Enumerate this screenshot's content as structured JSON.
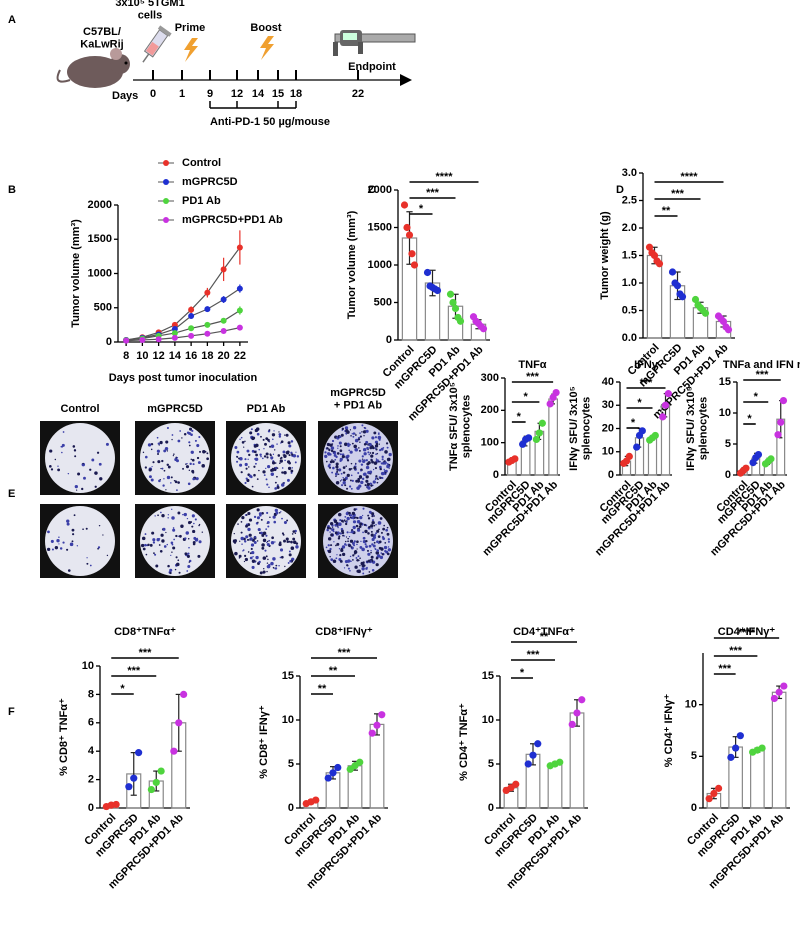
{
  "panel_labels": [
    "A",
    "B",
    "C",
    "D",
    "E",
    "F"
  ],
  "timeline": {
    "mouse_label": "C57BL/ KaLwRij",
    "cells_label": "3x10⁵ 5TGM1 cells",
    "axis_label": "Days",
    "days": [
      0,
      1,
      9,
      12,
      14,
      15,
      18,
      22
    ],
    "events": [
      {
        "label": "Prime",
        "day": 1
      },
      {
        "label": "Boost",
        "day": 14
      },
      {
        "label": "Endpoint",
        "day": 22
      }
    ],
    "treatment": {
      "label": "Anti-PD-1 50 µg/mouse",
      "days": [
        9,
        12,
        15,
        18
      ]
    }
  },
  "elispot": {
    "labels": [
      "Control",
      "mGPRC5D",
      "PD1 Ab",
      "mGPRC5D + PD1 Ab"
    ]
  },
  "chart_data": [
    {
      "type": "line",
      "xlabel": "Days post tumor inoculation",
      "ylabel": "Tumor volume (mm³)",
      "x": [
        8,
        10,
        12,
        14,
        16,
        18,
        20,
        22
      ],
      "xlim": [
        7,
        23
      ],
      "xticks": [
        8,
        10,
        12,
        14,
        16,
        18,
        20,
        22
      ],
      "ylim": [
        0,
        2000
      ],
      "yticks": [
        0,
        500,
        1000,
        1500,
        2000
      ],
      "legend": "top-left",
      "series": [
        {
          "name": "Control",
          "color": "#e8312a",
          "values": [
            30,
            70,
            140,
            250,
            470,
            720,
            1060,
            1380
          ],
          "errors": [
            10,
            15,
            20,
            30,
            50,
            70,
            170,
            250
          ]
        },
        {
          "name": "mGPRC5D",
          "color": "#1f2fd1",
          "values": [
            30,
            60,
            110,
            190,
            380,
            480,
            620,
            780
          ],
          "errors": [
            5,
            10,
            15,
            20,
            40,
            40,
            50,
            60
          ]
        },
        {
          "name": "PD1 Ab",
          "color": "#4fd43e",
          "values": [
            25,
            50,
            90,
            130,
            200,
            250,
            310,
            460
          ],
          "errors": [
            5,
            8,
            10,
            15,
            20,
            30,
            40,
            60
          ]
        },
        {
          "name": "mGPRC5D+PD1 Ab",
          "color": "#c832e0",
          "values": [
            20,
            30,
            40,
            60,
            90,
            120,
            160,
            210
          ],
          "errors": [
            5,
            5,
            8,
            10,
            10,
            15,
            20,
            25
          ]
        }
      ]
    },
    {
      "type": "bar",
      "ylabel": "Tumor volume (mm³)",
      "categories": [
        "Control",
        "mGPRC5D",
        "PD1 Ab",
        "mGPRC5D+PD1 Ab"
      ],
      "colors": [
        "#e8312a",
        "#1f2fd1",
        "#4fd43e",
        "#c832e0"
      ],
      "values": [
        1360,
        760,
        450,
        210
      ],
      "errors": [
        350,
        170,
        160,
        60
      ],
      "points": [
        [
          1800,
          1500,
          1400,
          1150,
          1000
        ],
        [
          900,
          720,
          700,
          680,
          660
        ],
        [
          610,
          500,
          420,
          300,
          250
        ],
        [
          310,
          250,
          220,
          180,
          150
        ]
      ],
      "ylim": [
        0,
        2000
      ],
      "yticks": [
        0,
        500,
        1000,
        1500,
        2000
      ],
      "significance": [
        {
          "label": "*",
          "groups": [
            0,
            1
          ]
        },
        {
          "label": "***",
          "groups": [
            0,
            2
          ]
        },
        {
          "label": "****",
          "groups": [
            0,
            3
          ]
        }
      ]
    },
    {
      "type": "bar",
      "ylabel": "Tumor weight (g)",
      "categories": [
        "Control",
        "mGPRC5D",
        "PD1 Ab",
        "mGPRC5D+PD1 Ab"
      ],
      "colors": [
        "#e8312a",
        "#1f2fd1",
        "#4fd43e",
        "#c832e0"
      ],
      "values": [
        1.5,
        0.95,
        0.55,
        0.3
      ],
      "errors": [
        0.15,
        0.25,
        0.1,
        0.1
      ],
      "points": [
        [
          1.65,
          1.55,
          1.5,
          1.4,
          1.35
        ],
        [
          1.2,
          1.0,
          0.95,
          0.8,
          0.75
        ],
        [
          0.7,
          0.6,
          0.55,
          0.5,
          0.45
        ],
        [
          0.4,
          0.35,
          0.3,
          0.2,
          0.15
        ]
      ],
      "ylim": [
        0,
        3
      ],
      "yticks": [
        {
          "value": 0,
          "label": "0.0"
        },
        {
          "value": 0.5,
          "label": "0.5"
        },
        {
          "value": 1,
          "label": "1.0"
        },
        {
          "value": 1.5,
          "label": "1.5"
        },
        {
          "value": 2,
          "label": "2.0"
        },
        {
          "value": 2.5,
          "label": "2.5"
        },
        {
          "value": 3,
          "label": "3.0"
        }
      ],
      "significance": [
        {
          "label": "**",
          "groups": [
            0,
            1
          ]
        },
        {
          "label": "***",
          "groups": [
            0,
            2
          ]
        },
        {
          "label": "****",
          "groups": [
            0,
            3
          ]
        }
      ]
    },
    {
      "type": "bar",
      "title": "TNFα",
      "ylabel": "TNFα SFU/ 3x10⁵ splenocytes",
      "categories": [
        "Control",
        "mGPRC5D",
        "PD1 Ab",
        "mGPRC5D+PD1 Ab"
      ],
      "colors": [
        "#e8312a",
        "#1f2fd1",
        "#4fd43e",
        "#c832e0"
      ],
      "values": [
        45,
        105,
        135,
        235
      ],
      "errors": [
        8,
        15,
        25,
        15
      ],
      "points": [
        [
          40,
          45,
          50
        ],
        [
          95,
          110,
          115
        ],
        [
          110,
          130,
          160
        ],
        [
          220,
          240,
          255
        ]
      ],
      "ylim": [
        0,
        300
      ],
      "yticks": [
        0,
        100,
        200,
        300
      ],
      "significance": [
        {
          "label": "*",
          "groups": [
            0,
            1
          ]
        },
        {
          "label": "*",
          "groups": [
            0,
            2
          ]
        },
        {
          "label": "***",
          "groups": [
            0,
            3
          ]
        }
      ]
    },
    {
      "type": "bar",
      "title": "IFNγ",
      "ylabel": "IFNγ SFU/ 3x10⁵ splenocytes",
      "categories": [
        "Control",
        "mGPRC5D",
        "PD1 Ab",
        "mGPRC5D+PD1 Ab"
      ],
      "colors": [
        "#e8312a",
        "#1f2fd1",
        "#4fd43e",
        "#c832e0"
      ],
      "values": [
        6,
        16,
        16,
        30
      ],
      "errors": [
        2,
        4,
        1,
        5
      ],
      "points": [
        [
          5,
          6,
          8
        ],
        [
          12,
          17,
          19
        ],
        [
          15,
          16,
          17
        ],
        [
          25,
          30,
          35
        ]
      ],
      "ylim": [
        0,
        40
      ],
      "yticks": [
        0,
        10,
        20,
        30,
        40
      ],
      "significance": [
        {
          "label": "*",
          "groups": [
            0,
            1
          ]
        },
        {
          "label": "*",
          "groups": [
            0,
            2
          ]
        },
        {
          "label": "***",
          "groups": [
            0,
            3
          ]
        }
      ]
    },
    {
      "type": "bar",
      "title": "TNFa and IFN r",
      "ylabel": "IFNγ SFU/ 3x10⁵ splenocytes",
      "categories": [
        "Control",
        "mGPRC5D",
        "PD1 Ab",
        "mGPRC5D+PD1 Ab"
      ],
      "colors": [
        "#e8312a",
        "#1f2fd1",
        "#4fd43e",
        "#c832e0"
      ],
      "values": [
        0.7,
        2.7,
        2.2,
        9
      ],
      "errors": [
        0.5,
        0.8,
        0.5,
        3
      ],
      "points": [
        [
          0.3,
          0.7,
          1.1
        ],
        [
          2,
          2.8,
          3.3
        ],
        [
          1.8,
          2.2,
          2.6
        ],
        [
          6.5,
          8.5,
          12
        ]
      ],
      "ylim": [
        0,
        15
      ],
      "yticks": [
        0,
        5,
        10,
        15
      ],
      "significance": [
        {
          "label": "*",
          "groups": [
            0,
            1
          ]
        },
        {
          "label": "*",
          "groups": [
            0,
            2
          ]
        },
        {
          "label": "***",
          "groups": [
            0,
            3
          ]
        }
      ]
    },
    {
      "type": "bar",
      "title": "CD8⁺TNFα⁺",
      "ylabel": "% CD8⁺ TNFα⁺",
      "categories": [
        "Control",
        "mGPRC5D",
        "PD1 Ab",
        "mGPRC5D+PD1 Ab"
      ],
      "colors": [
        "#e8312a",
        "#1f2fd1",
        "#4fd43e",
        "#c832e0"
      ],
      "values": [
        0.2,
        2.4,
        1.9,
        6.0
      ],
      "errors": [
        0.1,
        1.5,
        0.7,
        2
      ],
      "points": [
        [
          0.1,
          0.2,
          0.25
        ],
        [
          1.5,
          2.1,
          3.9
        ],
        [
          1.3,
          1.8,
          2.6
        ],
        [
          4.0,
          6.0,
          8.0
        ]
      ],
      "ylim": [
        0,
        10
      ],
      "yticks": [
        0,
        2,
        4,
        6,
        8,
        10
      ],
      "significance": [
        {
          "label": "*",
          "groups": [
            0,
            1
          ]
        },
        {
          "label": "***",
          "groups": [
            0,
            2
          ]
        },
        {
          "label": "***",
          "groups": [
            0,
            3
          ]
        }
      ]
    },
    {
      "type": "bar",
      "title": "CD8⁺IFNγ⁺",
      "ylabel": "% CD8⁺ IFNγ⁺",
      "categories": [
        "Control",
        "mGPRC5D",
        "PD1 Ab",
        "mGPRC5D+PD1 Ab"
      ],
      "colors": [
        "#e8312a",
        "#1f2fd1",
        "#4fd43e",
        "#c832e0"
      ],
      "values": [
        0.7,
        4,
        4.8,
        9.5
      ],
      "errors": [
        0.2,
        0.7,
        0.5,
        1.2
      ],
      "points": [
        [
          0.5,
          0.7,
          0.9
        ],
        [
          3.4,
          4.0,
          4.6
        ],
        [
          4.4,
          4.8,
          5.2
        ],
        [
          8.5,
          9.4,
          10.6
        ]
      ],
      "ylim": [
        0,
        15
      ],
      "yticks": [
        0,
        5,
        10,
        15
      ],
      "significance": [
        {
          "label": "**",
          "groups": [
            0,
            1
          ]
        },
        {
          "label": "**",
          "groups": [
            0,
            2
          ]
        },
        {
          "label": "***",
          "groups": [
            0,
            3
          ]
        }
      ]
    },
    {
      "type": "bar",
      "title": "CD4⁺TNFα⁺",
      "ylabel": "% CD4⁺ TNFα⁺",
      "categories": [
        "Control",
        "mGPRC5D",
        "PD1 Ab",
        "mGPRC5D+PD1 Ab"
      ],
      "colors": [
        "#e8312a",
        "#1f2fd1",
        "#4fd43e",
        "#c832e0"
      ],
      "values": [
        2.3,
        6.1,
        5,
        10.8
      ],
      "errors": [
        0.4,
        1.2,
        0.2,
        1.5
      ],
      "points": [
        [
          2.0,
          2.3,
          2.7
        ],
        [
          5.0,
          6.0,
          7.3
        ],
        [
          4.8,
          5.0,
          5.2
        ],
        [
          9.5,
          10.8,
          12.3
        ]
      ],
      "ylim": [
        0,
        15
      ],
      "yticks": [
        0,
        5,
        10,
        15
      ],
      "significance": [
        {
          "label": "*",
          "groups": [
            0,
            1
          ]
        },
        {
          "label": "***",
          "groups": [
            0,
            2
          ]
        },
        {
          "label": "**",
          "groups": [
            0,
            3
          ]
        }
      ]
    },
    {
      "type": "bar",
      "title": "CD4⁺IFNγ⁺",
      "ylabel": "% CD4⁺ IFNγ⁺",
      "categories": [
        "Control",
        "mGPRC5D",
        "PD1 Ab",
        "mGPRC5D+PD1 Ab"
      ],
      "colors": [
        "#e8312a",
        "#1f2fd1",
        "#4fd43e",
        "#c832e0"
      ],
      "values": [
        1.4,
        5.9,
        5.6,
        11.2
      ],
      "errors": [
        0.5,
        1.0,
        0.2,
        0.6
      ],
      "points": [
        [
          0.9,
          1.4,
          1.9
        ],
        [
          4.9,
          5.8,
          7.0
        ],
        [
          5.4,
          5.6,
          5.8
        ],
        [
          10.6,
          11.2,
          11.8
        ]
      ],
      "ylim": [
        0,
        15
      ],
      "yticks": [
        0,
        5,
        10
      ],
      "significance": [
        {
          "label": "***",
          "groups": [
            0,
            1
          ]
        },
        {
          "label": "***",
          "groups": [
            0,
            2
          ]
        },
        {
          "label": "****",
          "groups": [
            0,
            3
          ]
        }
      ]
    }
  ]
}
